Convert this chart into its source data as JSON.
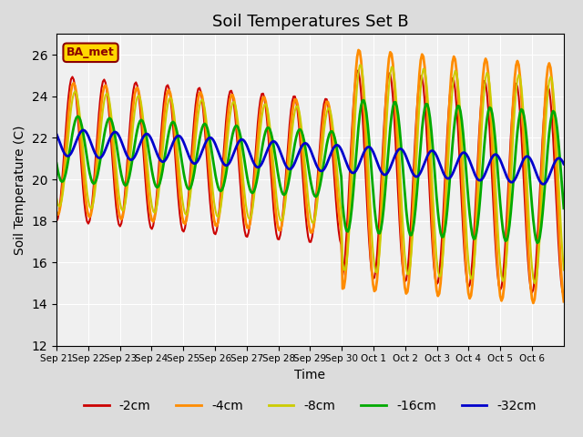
{
  "title": "Soil Temperatures Set B",
  "xlabel": "Time",
  "ylabel": "Soil Temperature (C)",
  "ylim": [
    12,
    27
  ],
  "yticks": [
    12,
    14,
    16,
    18,
    20,
    22,
    24,
    26
  ],
  "x_labels": [
    "Sep 21",
    "Sep 22",
    "Sep 23",
    "Sep 24",
    "Sep 25",
    "Sep 26",
    "Sep 27",
    "Sep 28",
    "Sep 29",
    "Sep 30",
    "Oct 1",
    "Oct 2",
    "Oct 3",
    "Oct 4",
    "Oct 5",
    "Oct 6"
  ],
  "annotation_text": "BA_met",
  "annotation_color": "#8B0000",
  "annotation_bg": "#FFD700",
  "colors": {
    "-2cm": "#CC0000",
    "-4cm": "#FF8C00",
    "-8cm": "#CCCC00",
    "-16cm": "#00AA00",
    "-32cm": "#0000CC"
  },
  "line_widths": {
    "-2cm": 1.5,
    "-4cm": 2.0,
    "-8cm": 1.5,
    "-16cm": 2.0,
    "-32cm": 2.0
  }
}
